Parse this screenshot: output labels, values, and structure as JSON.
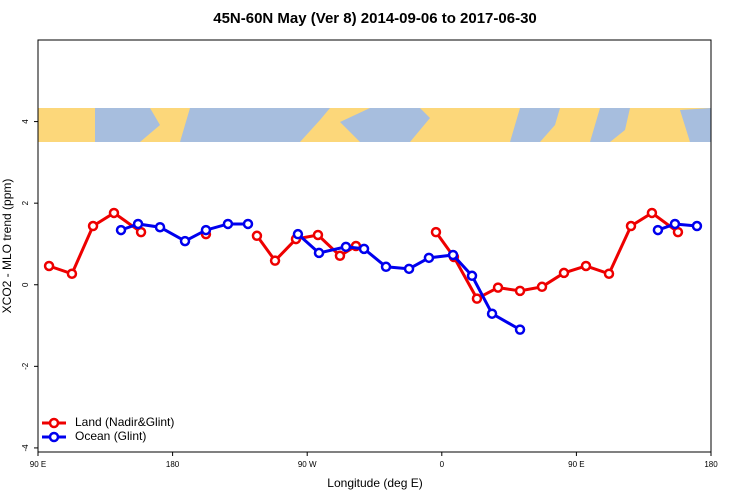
{
  "chart_data": {
    "type": "line",
    "title": "45N-60N May (Ver 8)   2014-09-06 to 2017-06-30",
    "x_label": "Longitude (deg E)",
    "y_label": "XCO2 - MLO trend (ppm)",
    "xlim": [
      90,
      540
    ],
    "xticks": [
      {
        "value": 90,
        "label": "90 E"
      },
      {
        "value": 180,
        "label": "180"
      },
      {
        "value": 270,
        "label": "90 W"
      },
      {
        "value": 360,
        "label": "0"
      },
      {
        "value": 450,
        "label": "90 E"
      },
      {
        "value": 540,
        "label": "180"
      }
    ],
    "ylim": [
      -4.1,
      6
    ],
    "yticks": [
      -4,
      -2,
      0,
      2,
      4
    ],
    "legend": "bottom-left",
    "series": [
      {
        "name": "Land (Nadir&Glint)",
        "color": "#ee0000",
        "x": [
          97.4,
          112.7,
          126.8,
          140.8,
          158.9,
          null,
          202.3,
          null,
          236.4,
          248.5,
          262.5,
          277.2,
          291.9,
          302.6,
          null,
          356.1,
          368.1,
          383.5,
          397.6,
          412.3,
          427.0,
          441.7,
          456.4,
          471.8,
          486.5,
          500.5,
          517.9
        ],
        "values": [
          0.46,
          0.27,
          1.44,
          1.76,
          1.29,
          null,
          1.24,
          null,
          1.2,
          0.59,
          1.12,
          1.22,
          0.71,
          0.95,
          null,
          1.29,
          0.68,
          -0.34,
          -0.07,
          -0.15,
          -0.05,
          0.29,
          0.46,
          0.27,
          1.44,
          1.76,
          1.29
        ]
      },
      {
        "name": "Ocean (Glint)",
        "color": "#0000ee",
        "x": [
          145.5,
          156.9,
          171.6,
          188.3,
          202.3,
          217.0,
          230.4,
          null,
          263.8,
          277.9,
          295.9,
          308.0,
          322.7,
          338.1,
          351.4,
          367.5,
          380.2,
          393.6,
          412.3,
          null,
          504.5,
          515.9,
          530.6
        ],
        "values": [
          1.34,
          1.49,
          1.41,
          1.07,
          1.34,
          1.49,
          1.49,
          null,
          1.24,
          0.78,
          0.93,
          0.88,
          0.44,
          0.39,
          0.66,
          0.73,
          0.22,
          -0.71,
          -1.1,
          null,
          1.34,
          1.49,
          1.44
        ]
      }
    ]
  }
}
